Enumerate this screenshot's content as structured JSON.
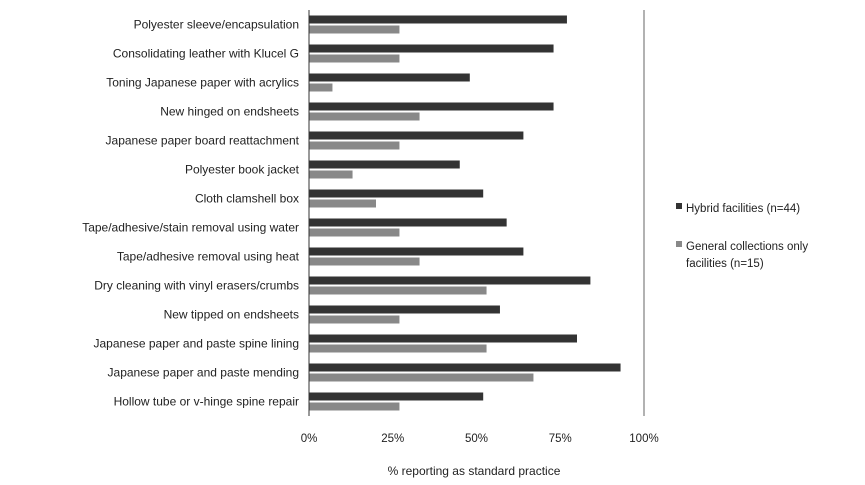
{
  "chart_data": {
    "type": "bar",
    "orientation": "horizontal",
    "categories": [
      "Polyester sleeve/encapsulation",
      "Consolidating leather with Klucel G",
      "Toning Japanese paper with acrylics",
      "New hinged on endsheets",
      "Japanese paper board reattachment",
      "Polyester book jacket",
      "Cloth clamshell box",
      "Tape/adhesive/stain removal using water",
      "Tape/adhesive removal using heat",
      "Dry cleaning with vinyl erasers/crumbs",
      "New tipped on endsheets",
      "Japanese paper and paste spine lining",
      "Japanese paper and paste mending",
      "Hollow tube or v-hinge spine repair"
    ],
    "series": [
      {
        "name": "Hybrid facilities (n=44)",
        "color": "#333333",
        "values": [
          77,
          73,
          48,
          73,
          64,
          45,
          52,
          59,
          64,
          84,
          57,
          80,
          93,
          52
        ]
      },
      {
        "name_lines": [
          "General collections only",
          "facilities (n=15)"
        ],
        "color": "#888888",
        "values": [
          27,
          27,
          7,
          33,
          27,
          13,
          20,
          27,
          33,
          53,
          27,
          53,
          67,
          27
        ]
      }
    ],
    "xlabel": "% reporting as standard practice",
    "xlim": [
      0,
      100
    ],
    "xticks": [
      0,
      25,
      50,
      75,
      100
    ],
    "xtick_labels": [
      "0%",
      "25%",
      "50%",
      "75%",
      "100%"
    ],
    "gridlines": "vertical at 100% only",
    "legend_position": "right"
  }
}
